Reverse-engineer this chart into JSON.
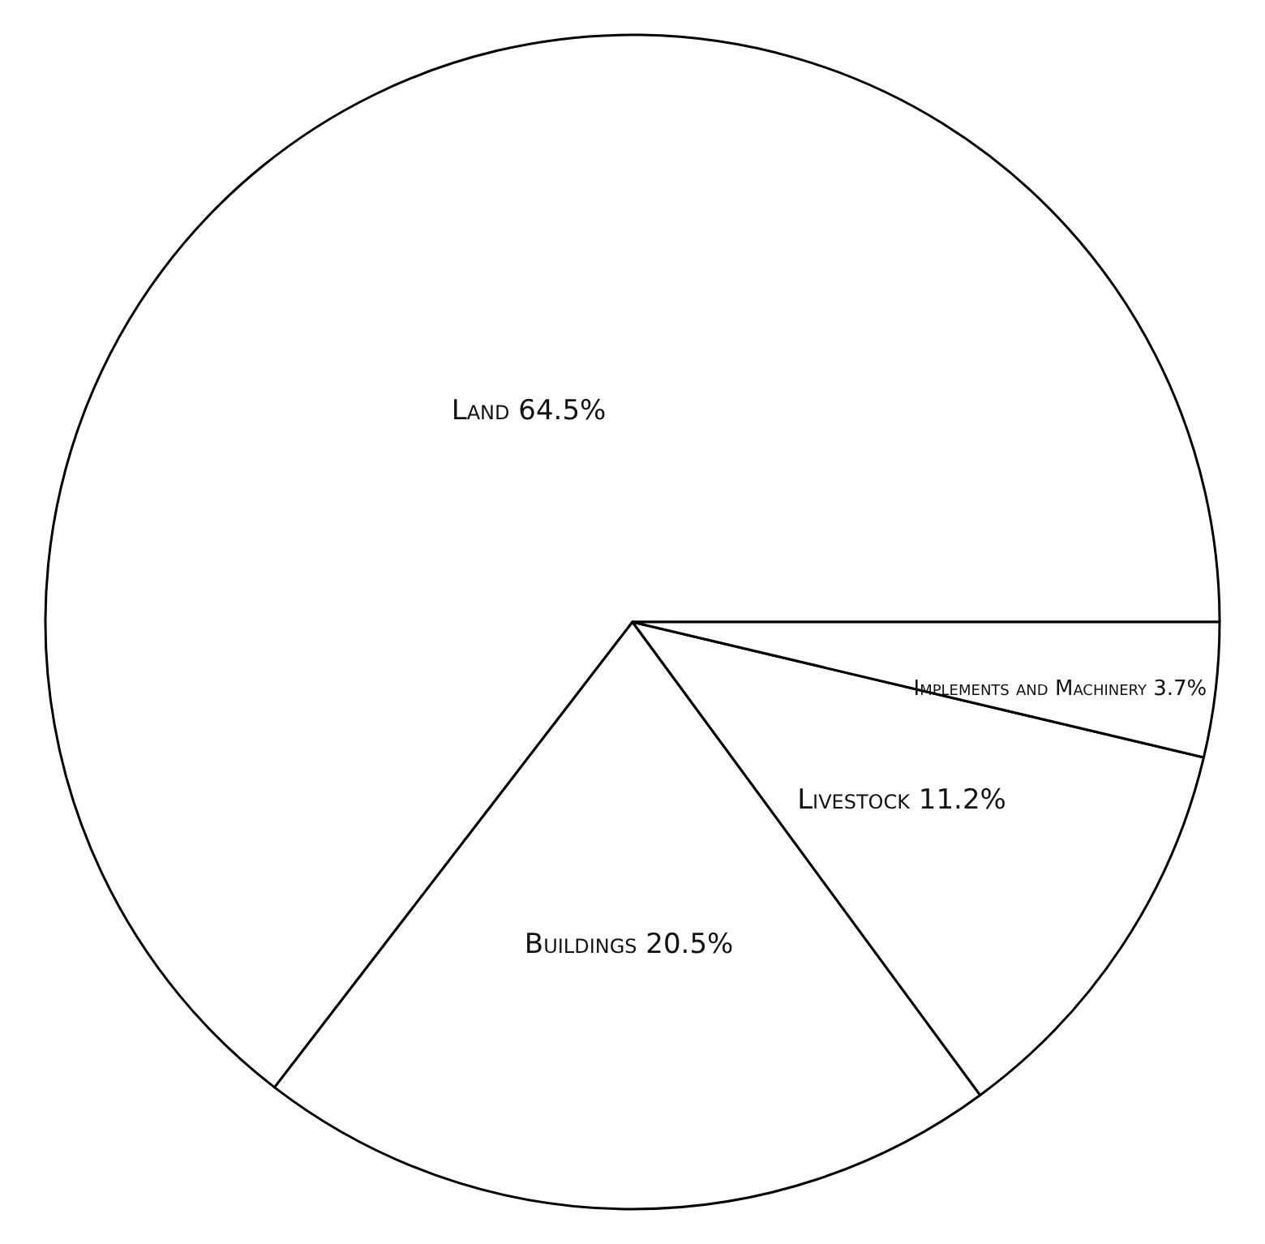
{
  "chart_data": {
    "type": "pie",
    "categories": [
      "Land",
      "Buildings",
      "Livestock",
      "Implements and Machinery"
    ],
    "values": [
      64.5,
      20.5,
      11.2,
      3.7
    ],
    "value_labels": [
      "64.5%",
      "20.5%",
      "11.2%",
      "3.7%"
    ],
    "colors": [
      "#ffffff",
      "#ffffff",
      "#ffffff",
      "#ffffff"
    ]
  }
}
